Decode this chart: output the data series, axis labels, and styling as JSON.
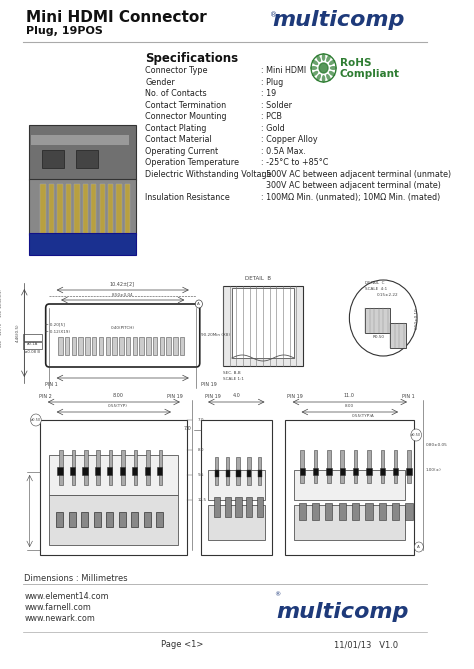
{
  "title_line1": "Mini HDMI Connector",
  "title_line2": "Plug, 19POS",
  "bg_color": "#ffffff",
  "brand_color": "#1e3a7a",
  "brand_name": "multicomp",
  "header_line_color": "#aaaaaa",
  "specs_title": "Specifications",
  "specs": [
    [
      "Connector Type",
      ": Mini HDMI"
    ],
    [
      "Gender",
      ": Plug"
    ],
    [
      "No. of Contacts",
      ": 19"
    ],
    [
      "Contact Termination",
      ": Solder"
    ],
    [
      "Connector Mounting",
      ": PCB"
    ],
    [
      "Contact Plating",
      ": Gold"
    ],
    [
      "Contact Material",
      ": Copper Alloy"
    ],
    [
      "Operating Current",
      ": 0.5A Max."
    ],
    [
      "Operation Temperature",
      ": -25°C to +85°C"
    ],
    [
      "Dielectric Withstanding Voltage",
      ": 500V AC between adjacent terminal (unmate)"
    ],
    [
      "",
      "  300V AC between adjacent terminal (mate)"
    ],
    [
      "Insulation Resistance",
      ": 100MΩ Min. (unmated); 10MΩ Min. (mated)"
    ]
  ],
  "footer_urls": [
    "www.element14.com",
    "www.farnell.com",
    "www.newark.com"
  ],
  "footer_page": "Page <1>",
  "footer_date": "11/01/13   V1.0",
  "rohs_color": "#2e7d32",
  "dim_note": "Dimensions : Millimetres",
  "line_color": "#444444",
  "draw_color": "#555555"
}
